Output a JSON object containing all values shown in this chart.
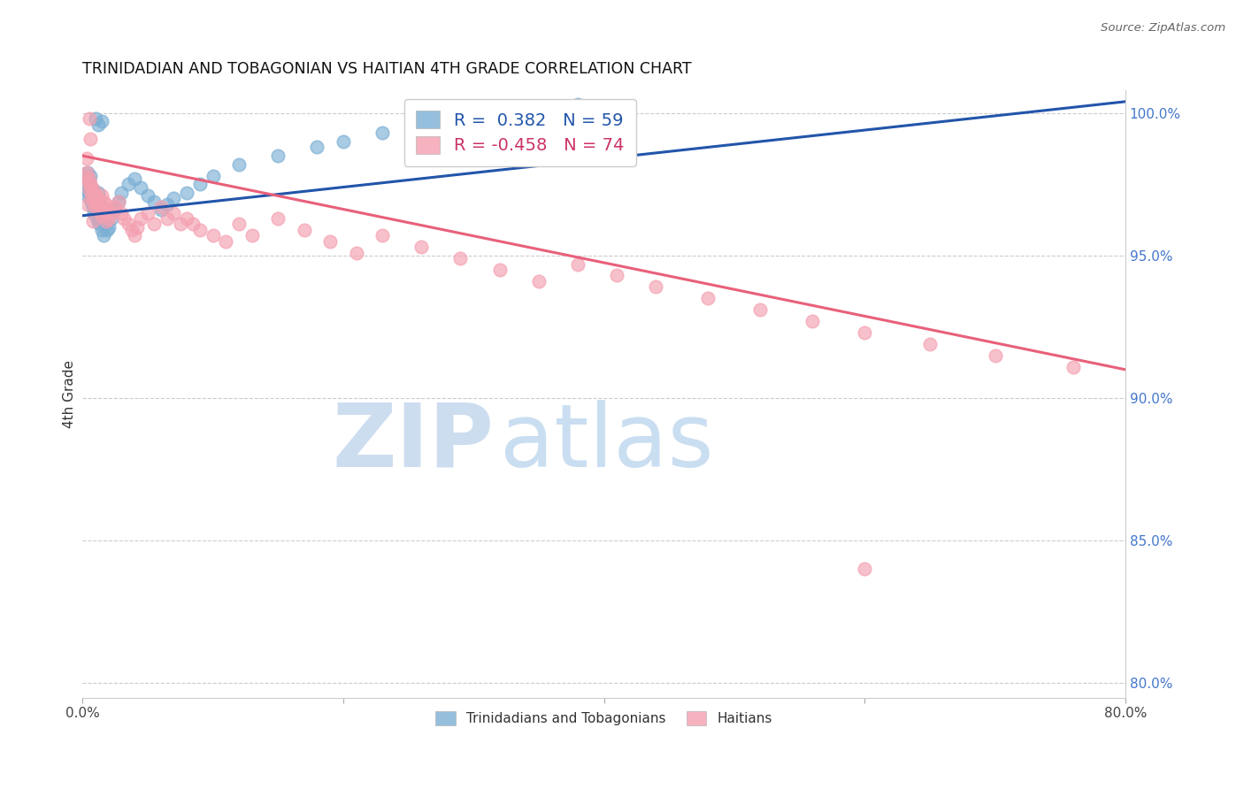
{
  "title": "TRINIDADIAN AND TOBAGONIAN VS HAITIAN 4TH GRADE CORRELATION CHART",
  "source_text": "Source: ZipAtlas.com",
  "ylabel": "4th Grade",
  "xlim": [
    0.0,
    0.8
  ],
  "ylim": [
    0.795,
    1.008
  ],
  "x_tick_positions": [
    0.0,
    0.2,
    0.4,
    0.6,
    0.8
  ],
  "x_tick_labels": [
    "0.0%",
    "",
    "",
    "",
    "80.0%"
  ],
  "y_tick_positions": [
    0.8,
    0.85,
    0.9,
    0.95,
    1.0
  ],
  "y_tick_labels": [
    "80.0%",
    "85.0%",
    "90.0%",
    "95.0%",
    "100.0%"
  ],
  "legend_r_blue": "0.382",
  "legend_n_blue": "59",
  "legend_r_pink": "-0.458",
  "legend_n_pink": "74",
  "blue_color": "#7BAFD4",
  "pink_color": "#F4A0B0",
  "blue_line_color": "#2255AA",
  "pink_line_color": "#E8607A",
  "watermark_zip": "ZIP",
  "watermark_atlas": "atlas",
  "blue_scatter_x": [
    0.002,
    0.003,
    0.003,
    0.004,
    0.004,
    0.005,
    0.005,
    0.006,
    0.006,
    0.007,
    0.007,
    0.008,
    0.008,
    0.009,
    0.009,
    0.01,
    0.01,
    0.011,
    0.011,
    0.012,
    0.012,
    0.013,
    0.013,
    0.014,
    0.015,
    0.015,
    0.016,
    0.016,
    0.017,
    0.018,
    0.019,
    0.02,
    0.022,
    0.025,
    0.028,
    0.03,
    0.035,
    0.04,
    0.045,
    0.05,
    0.055,
    0.06,
    0.065,
    0.07,
    0.08,
    0.09,
    0.1,
    0.12,
    0.15,
    0.18,
    0.2,
    0.23,
    0.27,
    0.31,
    0.35,
    0.38,
    0.01,
    0.012,
    0.015
  ],
  "blue_scatter_y": [
    0.975,
    0.977,
    0.973,
    0.979,
    0.971,
    0.976,
    0.972,
    0.978,
    0.97,
    0.974,
    0.969,
    0.971,
    0.967,
    0.973,
    0.965,
    0.968,
    0.964,
    0.97,
    0.966,
    0.972,
    0.962,
    0.969,
    0.961,
    0.967,
    0.963,
    0.959,
    0.965,
    0.957,
    0.963,
    0.961,
    0.959,
    0.96,
    0.963,
    0.966,
    0.969,
    0.972,
    0.975,
    0.977,
    0.974,
    0.971,
    0.969,
    0.966,
    0.968,
    0.97,
    0.972,
    0.975,
    0.978,
    0.982,
    0.985,
    0.988,
    0.99,
    0.993,
    0.996,
    0.999,
    1.001,
    1.003,
    0.998,
    0.996,
    0.997
  ],
  "pink_scatter_x": [
    0.002,
    0.003,
    0.004,
    0.005,
    0.005,
    0.006,
    0.007,
    0.007,
    0.008,
    0.009,
    0.009,
    0.01,
    0.01,
    0.011,
    0.012,
    0.012,
    0.013,
    0.014,
    0.015,
    0.015,
    0.016,
    0.017,
    0.018,
    0.018,
    0.019,
    0.02,
    0.022,
    0.025,
    0.028,
    0.03,
    0.032,
    0.035,
    0.038,
    0.04,
    0.042,
    0.045,
    0.05,
    0.055,
    0.06,
    0.065,
    0.07,
    0.075,
    0.08,
    0.085,
    0.09,
    0.1,
    0.11,
    0.12,
    0.13,
    0.15,
    0.17,
    0.19,
    0.21,
    0.23,
    0.26,
    0.29,
    0.32,
    0.35,
    0.38,
    0.41,
    0.44,
    0.48,
    0.52,
    0.56,
    0.6,
    0.65,
    0.7,
    0.76,
    0.003,
    0.004,
    0.005,
    0.006,
    0.6,
    0.008
  ],
  "pink_scatter_y": [
    0.978,
    0.979,
    0.976,
    0.977,
    0.973,
    0.975,
    0.974,
    0.97,
    0.972,
    0.973,
    0.969,
    0.971,
    0.967,
    0.969,
    0.97,
    0.966,
    0.968,
    0.966,
    0.971,
    0.964,
    0.969,
    0.965,
    0.968,
    0.962,
    0.966,
    0.963,
    0.965,
    0.967,
    0.969,
    0.965,
    0.963,
    0.961,
    0.959,
    0.957,
    0.96,
    0.963,
    0.965,
    0.961,
    0.967,
    0.963,
    0.965,
    0.961,
    0.963,
    0.961,
    0.959,
    0.957,
    0.955,
    0.961,
    0.957,
    0.963,
    0.959,
    0.955,
    0.951,
    0.957,
    0.953,
    0.949,
    0.945,
    0.941,
    0.947,
    0.943,
    0.939,
    0.935,
    0.931,
    0.927,
    0.923,
    0.919,
    0.915,
    0.911,
    0.984,
    0.968,
    0.998,
    0.991,
    0.84,
    0.962
  ],
  "blue_line_x": [
    0.0,
    0.8
  ],
  "blue_line_y": [
    0.964,
    1.004
  ],
  "pink_line_x": [
    0.0,
    0.8
  ],
  "pink_line_y": [
    0.985,
    0.91
  ]
}
